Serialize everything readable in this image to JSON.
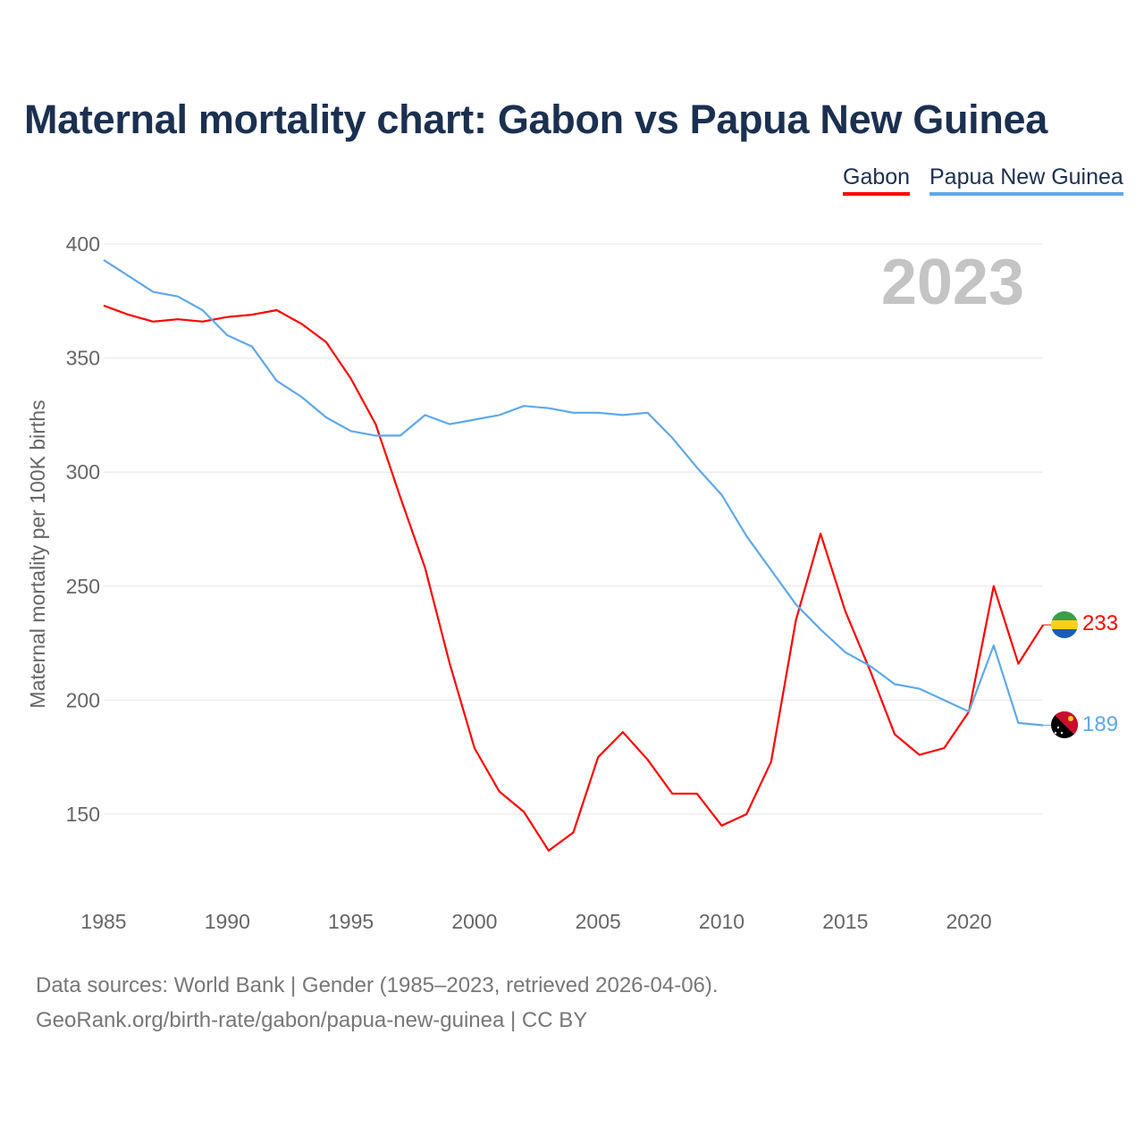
{
  "chart_data": {
    "type": "line",
    "title": "Maternal mortality chart: Gabon vs Papua New Guinea",
    "ylabel": "Maternal mortality per 100K births",
    "xlabel": "",
    "xlim": [
      1985,
      2023
    ],
    "ylim": [
      115,
      400
    ],
    "yticks": [
      150,
      200,
      250,
      300,
      350,
      400
    ],
    "xticks": [
      1985,
      1990,
      1995,
      2000,
      2005,
      2010,
      2015,
      2020
    ],
    "grid": true,
    "legend_position": "top-right",
    "year_label": "2023",
    "x": [
      1985,
      1986,
      1987,
      1988,
      1989,
      1990,
      1991,
      1992,
      1993,
      1994,
      1995,
      1996,
      1997,
      1998,
      1999,
      2000,
      2001,
      2002,
      2003,
      2004,
      2005,
      2006,
      2007,
      2008,
      2009,
      2010,
      2011,
      2012,
      2013,
      2014,
      2015,
      2016,
      2017,
      2018,
      2019,
      2020,
      2021,
      2022,
      2023
    ],
    "series": [
      {
        "name": "Gabon",
        "color": "#ff0000",
        "end_label": "233",
        "values": [
          373,
          369,
          366,
          367,
          366,
          368,
          369,
          371,
          365,
          357,
          341,
          321,
          289,
          258,
          216,
          179,
          160,
          151,
          134,
          142,
          175,
          186,
          174,
          159,
          159,
          145,
          150,
          173,
          235,
          273,
          239,
          213,
          185,
          176,
          179,
          195,
          250,
          216,
          233
        ]
      },
      {
        "name": "Papua New Guinea",
        "color": "#5fa8ea",
        "end_label": "189",
        "values": [
          393,
          386,
          379,
          377,
          371,
          360,
          355,
          340,
          333,
          324,
          318,
          316,
          316,
          325,
          321,
          323,
          325,
          329,
          328,
          326,
          326,
          325,
          326,
          315,
          302,
          290,
          272,
          257,
          242,
          231,
          221,
          215,
          207,
          205,
          200,
          195,
          224,
          190,
          189
        ]
      }
    ]
  },
  "footer": {
    "line1": "Data sources: World Bank | Gender (1985–2023, retrieved 2026-04-06).",
    "line2": "GeoRank.org/birth-rate/gabon/papua-new-guinea | CC BY"
  }
}
